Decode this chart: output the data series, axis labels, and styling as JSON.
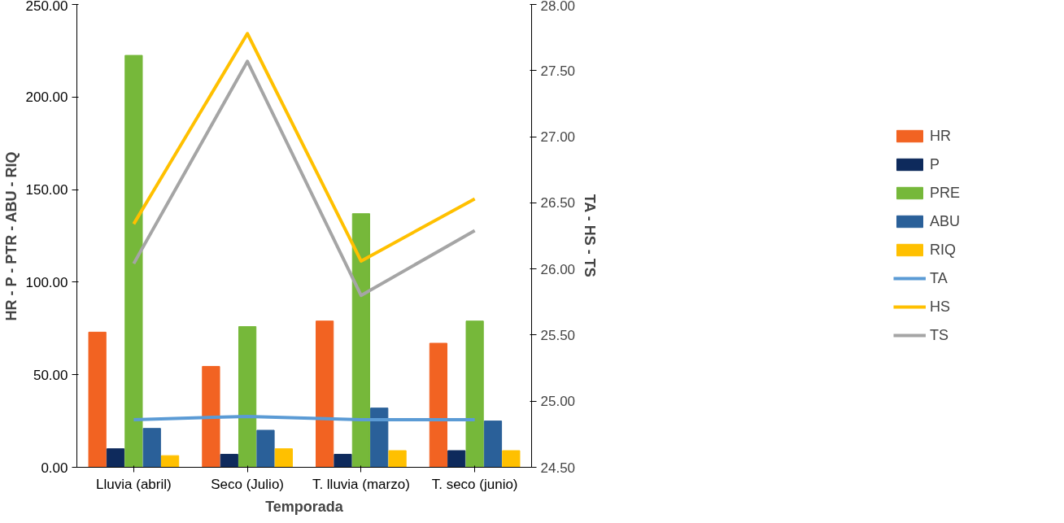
{
  "chart_data": {
    "type": "bar",
    "xlabel": "Temporada",
    "ylabel": "HR - P - PTR - ABU - RIQ",
    "y2label": "TA - HS - TS",
    "categories": [
      "Lluvia (abril)",
      "Seco (Julio)",
      "T. lluvia (marzo)",
      "T. seco (junio)"
    ],
    "series": [
      {
        "name": "HR",
        "color": "#f26322",
        "values": [
          73,
          54.5,
          79,
          67
        ]
      },
      {
        "name": "P",
        "color": "#0e2a5c",
        "values": [
          10,
          7,
          7,
          9
        ]
      },
      {
        "name": "PRE",
        "color": "#76b83a",
        "values": [
          222.5,
          76,
          137,
          79
        ]
      },
      {
        "name": "ABU",
        "color": "#2a6099",
        "values": [
          21,
          20,
          32,
          25
        ]
      },
      {
        "name": "RIQ",
        "color": "#ffc000",
        "values": [
          6.3,
          10,
          9,
          9
        ]
      },
      {
        "name": "TA",
        "type": "line",
        "axis": "y2",
        "color": "#5b9bd5",
        "values": [
          24.86,
          24.885,
          24.86,
          24.86
        ]
      },
      {
        "name": "HS",
        "type": "line",
        "axis": "y2",
        "color": "#ffc000",
        "values": [
          26.34,
          27.78,
          26.06,
          26.53
        ]
      },
      {
        "name": "TS",
        "type": "line",
        "axis": "y2",
        "color": "#a5a5a5",
        "values": [
          26.04,
          27.57,
          25.8,
          26.29
        ]
      }
    ],
    "ylim": [
      0,
      250
    ],
    "yticks": [
      {
        "value": 0,
        "label": "0.00"
      },
      {
        "value": 50,
        "label": "50.00"
      },
      {
        "value": 100,
        "label": "100.00"
      },
      {
        "value": 150,
        "label": "150.00"
      },
      {
        "value": 200,
        "label": "200.00"
      },
      {
        "value": 250,
        "label": "250.00"
      }
    ],
    "y2lim": [
      24.5,
      28
    ],
    "y2ticks": [
      {
        "value": 24.5,
        "label": "24.50"
      },
      {
        "value": 25,
        "label": "25.00"
      },
      {
        "value": 25.5,
        "label": "25.50"
      },
      {
        "value": 26,
        "label": "26.00"
      },
      {
        "value": 26.5,
        "label": "26.50"
      },
      {
        "value": 27,
        "label": "27.00"
      },
      {
        "value": 27.5,
        "label": "27.50"
      },
      {
        "value": 28,
        "label": "28.00"
      }
    ],
    "grid": false,
    "legend": "right",
    "line_style": "solid",
    "marker": "none"
  }
}
